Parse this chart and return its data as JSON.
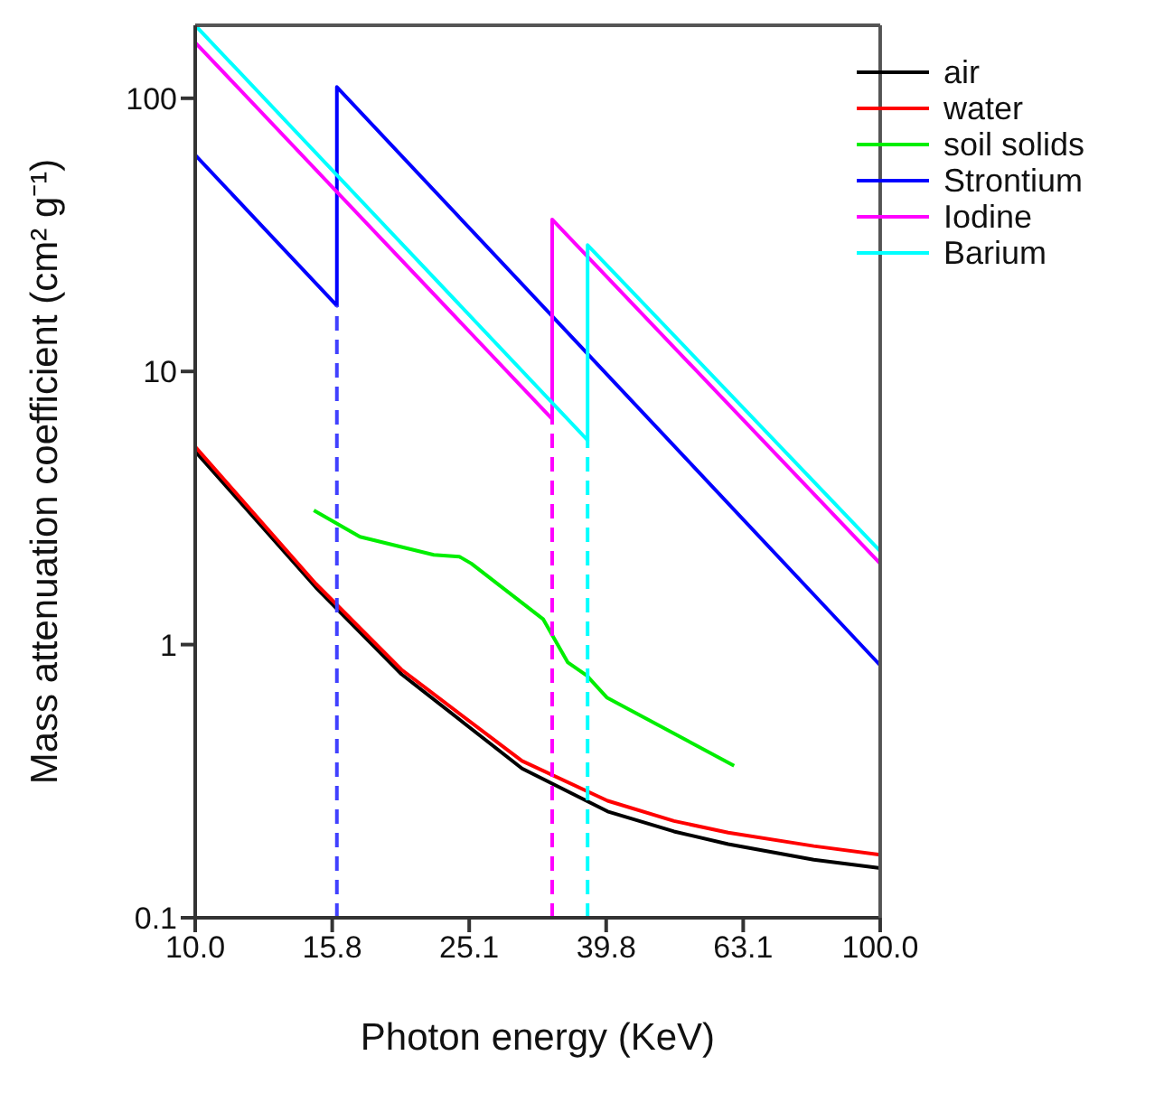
{
  "chart_data": {
    "type": "line",
    "xlabel": "Photon energy (KeV)",
    "ylabel": "Mass attenuation coefficient (cm² g⁻¹)",
    "log": "xy",
    "legend": "top right",
    "marker": "none",
    "xlim": [
      10,
      100
    ],
    "xticks": [
      {
        "value": 10,
        "label": "10.0"
      },
      {
        "value": 15.85,
        "label": "15.8"
      },
      {
        "value": 25.12,
        "label": "25.1"
      },
      {
        "value": 39.81,
        "label": "39.8"
      },
      {
        "value": 63.1,
        "label": "63.1"
      },
      {
        "value": 100,
        "label": "100.0"
      }
    ],
    "ylim": [
      0.1,
      185
    ],
    "yticks": [
      0.1,
      1,
      10,
      100
    ],
    "series": [
      {
        "name": "air",
        "color": "#000000",
        "x": [
          10,
          15,
          20,
          30,
          40,
          50,
          60,
          80,
          100
        ],
        "values": [
          5.1,
          1.62,
          0.78,
          0.352,
          0.245,
          0.207,
          0.186,
          0.163,
          0.152
        ]
      },
      {
        "name": "water",
        "color": "#ff0000",
        "x": [
          10,
          15,
          20,
          30,
          40,
          50,
          60,
          80,
          100
        ],
        "values": [
          5.3,
          1.67,
          0.81,
          0.375,
          0.268,
          0.226,
          0.205,
          0.183,
          0.17
        ]
      },
      {
        "name": "soil solids",
        "color": "#00ee00",
        "x": [
          14.9,
          17.4,
          22.3,
          24.3,
          25.3,
          32.2,
          35.0,
          37.3,
          39.9,
          61.2
        ],
        "values": [
          3.1,
          2.48,
          2.13,
          2.1,
          1.98,
          1.24,
          0.86,
          0.77,
          0.64,
          0.36
        ]
      },
      {
        "name": "Strontium",
        "color": "#0000ff",
        "x": [
          10,
          16.1,
          16.1,
          100
        ],
        "values": [
          62,
          17.4,
          110,
          0.84
        ]
      },
      {
        "name": "Iodine",
        "color": "#ff00ff",
        "x": [
          10,
          33.2,
          33.2,
          100
        ],
        "values": [
          160,
          6.7,
          36,
          1.98
        ]
      },
      {
        "name": "Barium",
        "color": "#00ffff",
        "x": [
          10,
          37.4,
          37.4,
          100
        ],
        "values": [
          185,
          5.6,
          29,
          2.2
        ]
      },
      {
        "color": "#4040ff",
        "line_style": "dashed",
        "x": [
          16.1,
          16.1
        ],
        "values": [
          0.1,
          17.4
        ]
      },
      {
        "color": "#ff00ff",
        "line_style": "dashed",
        "x": [
          33.2,
          33.2
        ],
        "values": [
          0.1,
          6.7
        ]
      },
      {
        "color": "#00ffff",
        "line_style": "dashed",
        "x": [
          37.4,
          37.4
        ],
        "values": [
          0.1,
          5.6
        ]
      }
    ]
  }
}
